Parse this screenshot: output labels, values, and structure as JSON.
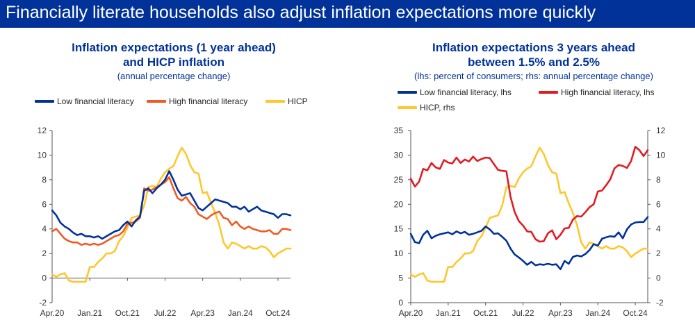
{
  "slide": {
    "title": "Financially literate households also adjust inflation expectations more quickly"
  },
  "colors": {
    "navy": "#003299",
    "red": "#E31B23",
    "orange": "#F15A22",
    "yellow": "#FFC72C"
  },
  "chart_data": [
    {
      "type": "line",
      "title_line1": "Inflation expectations (1 year ahead)",
      "title_line2": "and HICP inflation",
      "subtitle": "(annual percentage change)",
      "x_tick_labels": [
        "Apr.20",
        "Jan.21",
        "Oct.21",
        "Jul.22",
        "Apr.23",
        "Jan.24",
        "Oct.24"
      ],
      "x_tick_index": [
        0,
        9,
        18,
        27,
        36,
        45,
        54
      ],
      "n_points": 58,
      "ylim": [
        -2,
        12
      ],
      "y_ticks": [
        -2,
        0,
        2,
        4,
        6,
        8,
        10,
        12
      ],
      "series": [
        {
          "name": "Low financial literacy",
          "color": "#003299",
          "values": [
            5.5,
            5.1,
            4.5,
            4.2,
            4.0,
            3.7,
            3.5,
            3.6,
            3.4,
            3.4,
            3.3,
            3.4,
            3.2,
            3.4,
            3.6,
            3.8,
            3.9,
            4.3,
            4.6,
            4.2,
            4.7,
            5.0,
            7.1,
            7.3,
            6.9,
            7.3,
            7.6,
            8.0,
            8.7,
            8.0,
            7.2,
            6.7,
            6.8,
            6.9,
            6.3,
            5.7,
            5.5,
            5.8,
            6.1,
            6.4,
            6.3,
            6.2,
            6.1,
            5.8,
            5.8,
            5.6,
            5.8,
            5.4,
            5.6,
            5.8,
            5.5,
            5.4,
            5.3,
            5.2,
            4.9,
            5.2,
            5.2,
            5.1
          ]
        },
        {
          "name": "High financial literacy",
          "color": "#F15A22",
          "values": [
            3.8,
            4.0,
            3.6,
            3.2,
            3.0,
            2.9,
            2.9,
            2.7,
            2.8,
            2.7,
            2.8,
            2.7,
            2.8,
            3.0,
            3.2,
            3.4,
            3.5,
            3.8,
            4.4,
            4.5,
            4.6,
            4.9,
            7.3,
            7.1,
            7.2,
            7.4,
            7.6,
            7.8,
            8.2,
            7.3,
            6.5,
            6.3,
            6.6,
            6.1,
            5.8,
            5.2,
            5.0,
            4.8,
            5.1,
            5.3,
            5.4,
            4.9,
            4.8,
            4.3,
            4.6,
            4.2,
            4.0,
            4.2,
            4.0,
            3.9,
            3.8,
            3.8,
            3.9,
            3.6,
            3.6,
            4.0,
            4.0,
            3.9
          ]
        },
        {
          "name": "HICP",
          "color": "#FFC72C",
          "values": [
            0.3,
            0.1,
            0.3,
            0.4,
            -0.2,
            -0.3,
            -0.3,
            -0.3,
            -0.3,
            0.9,
            0.9,
            1.3,
            1.6,
            2.0,
            2.0,
            2.2,
            3.0,
            3.4,
            4.1,
            4.9,
            5.0,
            5.1,
            5.9,
            7.4,
            7.5,
            7.4,
            8.1,
            8.6,
            8.9,
            9.1,
            9.9,
            10.6,
            10.1,
            9.2,
            8.6,
            8.5,
            6.9,
            7.0,
            6.1,
            5.3,
            4.3,
            2.9,
            2.4,
            2.9,
            2.8,
            2.6,
            2.4,
            2.6,
            2.4,
            2.4,
            2.6,
            2.5,
            2.2,
            1.7,
            2.0,
            2.2,
            2.4,
            2.4
          ]
        }
      ]
    },
    {
      "type": "line",
      "title_line1": "Inflation expectations 3 years ahead",
      "title_line2": "between 1.5% and 2.5%",
      "subtitle": "(lhs: percent of consumers; rhs: annual percentage change)",
      "x_tick_labels": [
        "Apr.20",
        "Jan.21",
        "Oct.21",
        "Jul.22",
        "Apr.23",
        "Jan.24",
        "Oct.24"
      ],
      "x_tick_index": [
        0,
        9,
        18,
        27,
        36,
        45,
        54
      ],
      "n_points": 58,
      "ylim_left": [
        0,
        35
      ],
      "y_ticks_left": [
        0,
        5,
        10,
        15,
        20,
        25,
        30,
        35
      ],
      "ylim_right": [
        -2,
        12
      ],
      "y_ticks_right": [
        -2,
        0,
        2,
        4,
        6,
        8,
        10,
        12
      ],
      "series": [
        {
          "name": "Low financial literacy, lhs",
          "axis": "left",
          "color": "#003299",
          "values": [
            14.0,
            12.3,
            12.1,
            13.8,
            14.6,
            13.1,
            13.6,
            13.9,
            14.1,
            14.3,
            13.9,
            14.5,
            14.1,
            14.4,
            13.8,
            14.0,
            14.3,
            14.6,
            15.5,
            14.9,
            14.0,
            14.1,
            13.4,
            12.6,
            11.0,
            9.8,
            9.2,
            8.5,
            7.7,
            8.3,
            7.6,
            7.8,
            7.7,
            7.9,
            7.7,
            7.8,
            6.8,
            8.5,
            7.9,
            9.3,
            9.6,
            9.4,
            9.9,
            10.7,
            11.9,
            11.6,
            13.0,
            13.3,
            13.5,
            13.4,
            14.3,
            13.1,
            14.9,
            15.9,
            16.3,
            16.4,
            16.4,
            17.4
          ]
        },
        {
          "name": "High financial literacy, lhs",
          "axis": "right_legend",
          "color": "#E31B23",
          "values": [
            25.2,
            23.6,
            24.6,
            27.2,
            26.9,
            28.4,
            27.5,
            27.2,
            29.0,
            28.5,
            28.3,
            29.5,
            28.4,
            29.1,
            28.7,
            29.7,
            28.8,
            29.2,
            29.5,
            29.4,
            28.2,
            27.0,
            26.8,
            26.7,
            21.5,
            18.4,
            16.6,
            15.7,
            14.5,
            14.4,
            12.9,
            12.4,
            12.5,
            14.1,
            14.7,
            12.9,
            13.8,
            15.1,
            15.2,
            16.9,
            17.6,
            17.5,
            18.4,
            19.4,
            20.0,
            22.6,
            22.8,
            23.9,
            25.1,
            27.3,
            28.0,
            27.8,
            27.4,
            28.8,
            31.7,
            31.0,
            29.8,
            31.0
          ]
        },
        {
          "name": "HICP, rhs",
          "axis": "right",
          "color": "#FFC72C",
          "values": [
            0.3,
            0.1,
            0.3,
            0.4,
            -0.2,
            -0.3,
            -0.3,
            -0.3,
            -0.3,
            0.9,
            0.9,
            1.3,
            1.6,
            2.0,
            2.0,
            2.2,
            3.0,
            3.4,
            4.1,
            4.9,
            5.0,
            5.1,
            5.9,
            7.4,
            7.5,
            7.4,
            8.1,
            8.6,
            8.9,
            9.1,
            9.9,
            10.6,
            10.1,
            9.2,
            8.6,
            8.5,
            6.9,
            7.0,
            6.1,
            5.3,
            4.3,
            2.9,
            2.4,
            2.9,
            2.8,
            2.6,
            2.4,
            2.6,
            2.4,
            2.4,
            2.6,
            2.5,
            2.2,
            1.7,
            2.0,
            2.2,
            2.4,
            2.4
          ]
        }
      ]
    }
  ]
}
